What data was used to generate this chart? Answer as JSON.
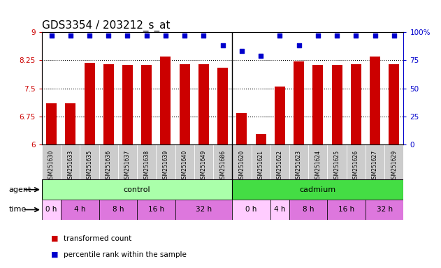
{
  "title": "GDS3354 / 203212_s_at",
  "samples": [
    "GSM251630",
    "GSM251633",
    "GSM251635",
    "GSM251636",
    "GSM251637",
    "GSM251638",
    "GSM251639",
    "GSM251640",
    "GSM251649",
    "GSM251686",
    "GSM251620",
    "GSM251621",
    "GSM251622",
    "GSM251623",
    "GSM251624",
    "GSM251625",
    "GSM251626",
    "GSM251627",
    "GSM251629"
  ],
  "bar_values": [
    7.1,
    7.1,
    8.18,
    8.15,
    8.12,
    8.12,
    8.35,
    8.15,
    8.15,
    8.05,
    6.85,
    6.28,
    7.55,
    8.22,
    8.12,
    8.12,
    8.15,
    8.35,
    8.15
  ],
  "percentile_values": [
    97,
    97,
    97,
    97,
    97,
    97,
    97,
    97,
    97,
    88,
    83,
    79,
    97,
    88,
    97,
    97,
    97,
    97,
    97
  ],
  "bar_color": "#cc0000",
  "dot_color": "#0000cc",
  "ylim_left": [
    6.0,
    9.0
  ],
  "ylim_right": [
    0,
    100
  ],
  "yticks_left": [
    6.0,
    6.75,
    7.5,
    8.25,
    9.0
  ],
  "yticks_right": [
    0,
    25,
    50,
    75,
    100
  ],
  "ytick_labels_left": [
    "6",
    "6.75",
    "7.5",
    "8.25",
    "9"
  ],
  "ytick_labels_right": [
    "0",
    "25",
    "50",
    "75",
    "100%"
  ],
  "n_control": 10,
  "agent_control_color": "#aaffaa",
  "agent_cadmium_color": "#44dd44",
  "time_colors": {
    "0h_control": "#ffccff",
    "4h_control": "#dd77dd",
    "8h_control": "#dd77dd",
    "16h_control": "#dd77dd",
    "32h_control": "#dd77dd",
    "0h_cadmium": "#ffccff",
    "4h_cadmium": "#ffccff",
    "8h_cadmium": "#dd77dd",
    "16h_cadmium": "#dd77dd",
    "32h_cadmium": "#dd77dd"
  },
  "time_light": "#ffccff",
  "time_dark": "#dd77dd",
  "sample_bg": "#cccccc",
  "legend_items": [
    {
      "label": "transformed count",
      "color": "#cc0000"
    },
    {
      "label": "percentile rank within the sample",
      "color": "#0000cc"
    }
  ],
  "bg_color": "#ffffff",
  "bar_width": 0.55,
  "title_fontsize": 11,
  "tick_fontsize": 7.5,
  "label_fontsize": 8
}
